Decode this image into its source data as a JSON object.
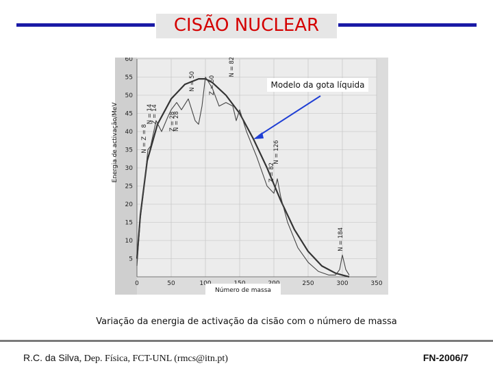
{
  "slide": {
    "title": "CISÃO NUCLEAR",
    "caption": "Variação da energia de activação da cisão com o número de massa",
    "footer_author": "R.C. da Silva",
    "footer_affiliation": ", Dep. Física, FCT-UNL (rmcs@itn.pt)",
    "footer_code": "FN-2006/7"
  },
  "chart_data": {
    "type": "line",
    "title": "",
    "xlabel": "Número de massa",
    "ylabel": "Energia de activação/MeV",
    "xlim": [
      0,
      350
    ],
    "ylim": [
      0,
      60
    ],
    "x_ticks": [
      "0",
      "50",
      "100",
      "150",
      "200",
      "250",
      "300",
      "350"
    ],
    "y_ticks": [
      "5",
      "10",
      "15",
      "20",
      "25",
      "30",
      "35",
      "40",
      "45",
      "50",
      "55",
      "60"
    ],
    "annotation": "Modelo da gota líquida",
    "shell_labels": [
      "N = Z = 8",
      "N = 14",
      "Z = 14",
      "Z = 28",
      "N = 28",
      "N = 50",
      "Z = 50",
      "N = 82",
      "Z = 82",
      "N = 126",
      "N = 184"
    ],
    "series": [
      {
        "x": [
          0,
          5,
          15,
          30,
          50,
          70,
          90,
          100,
          110,
          130,
          150,
          170,
          190,
          210,
          230,
          250,
          270,
          290,
          300,
          310
        ],
        "y": [
          5,
          17,
          32,
          42,
          49,
          53,
          54.5,
          54.5,
          53.5,
          50,
          45,
          38,
          30,
          21,
          13,
          7,
          3,
          1,
          0.5,
          0
        ]
      },
      {
        "x": [
          0,
          5,
          10,
          16,
          20,
          28,
          36,
          45,
          50,
          58,
          65,
          75,
          85,
          90,
          95,
          100,
          110,
          120,
          130,
          140,
          145,
          150,
          160,
          175,
          190,
          200,
          205,
          210,
          220,
          235,
          250,
          265,
          280,
          290,
          296,
          300,
          305,
          310
        ],
        "y": [
          3,
          16,
          24,
          35,
          36,
          43,
          40,
          44,
          46,
          48,
          46,
          49,
          43,
          42,
          47,
          55,
          52,
          47,
          48,
          47,
          43,
          46,
          40,
          33,
          25,
          23,
          27,
          22,
          15,
          8,
          4,
          1.5,
          0.5,
          0.5,
          2,
          6,
          2,
          0.5
        ]
      }
    ]
  }
}
